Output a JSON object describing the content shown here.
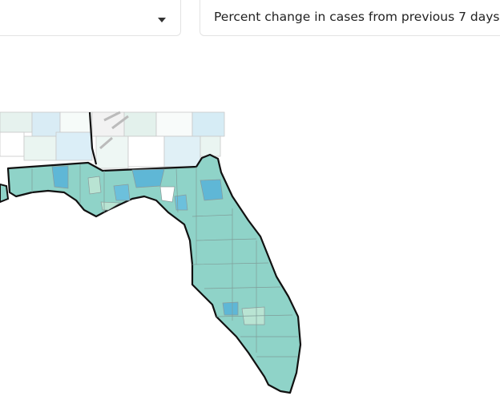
{
  "filters": {
    "metric": "Percent change in cases from previous 7 days"
  }
}
